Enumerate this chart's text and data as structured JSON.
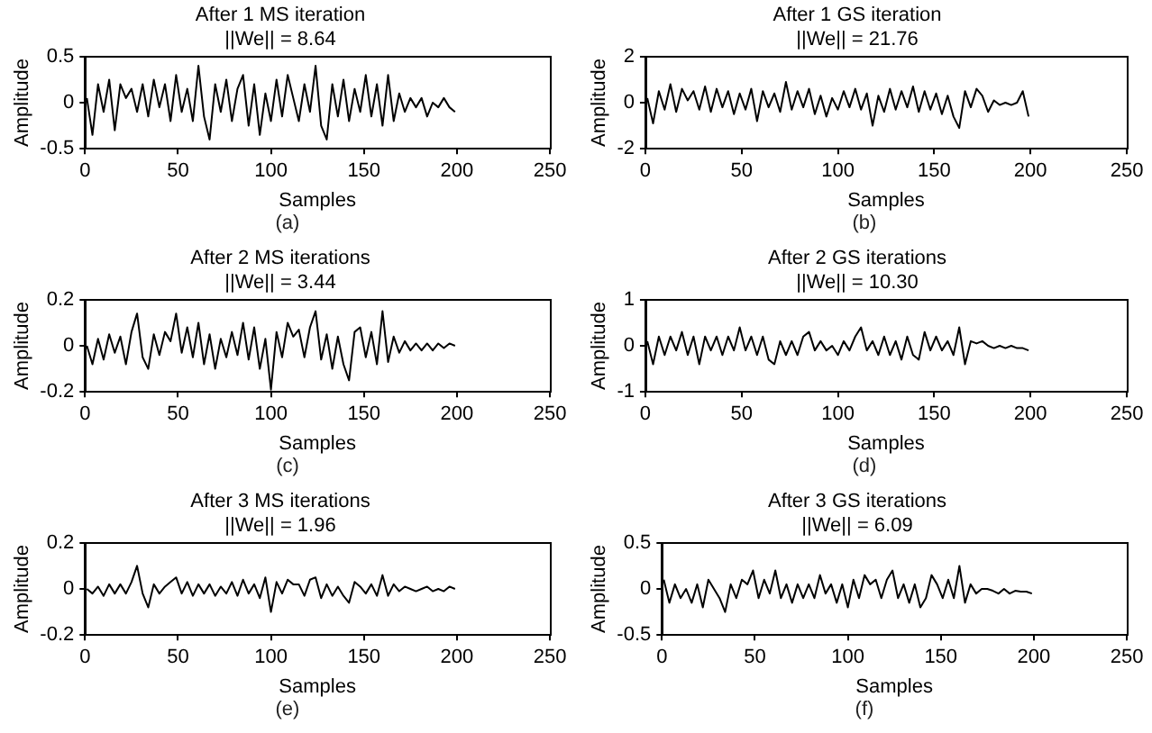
{
  "chart_data": [
    {
      "type": "line",
      "title": "After 1 MS iteration",
      "subtitle": "||We|| = 8.64",
      "xlabel": "Samples",
      "ylabel": "Amplitude",
      "annotations": [
        "(a)"
      ],
      "xlim": [
        0,
        250
      ],
      "xticks": [
        0,
        50,
        100,
        150,
        200,
        250
      ],
      "ylim": [
        -0.5,
        0.5
      ],
      "yticks": [
        -0.5,
        0,
        0.5
      ],
      "grid": false,
      "marker": "none",
      "line_style": "solid",
      "x": [
        1,
        4,
        7,
        10,
        13,
        16,
        19,
        22,
        25,
        28,
        31,
        34,
        37,
        40,
        43,
        46,
        49,
        52,
        55,
        58,
        61,
        64,
        67,
        70,
        73,
        76,
        79,
        82,
        85,
        88,
        91,
        94,
        97,
        100,
        103,
        106,
        109,
        112,
        115,
        118,
        121,
        124,
        127,
        130,
        133,
        136,
        139,
        142,
        145,
        148,
        151,
        154,
        157,
        160,
        163,
        166,
        169,
        172,
        175,
        178,
        181,
        184,
        187,
        190,
        193,
        196,
        199
      ],
      "series": [
        {
          "color": "#000000",
          "values": [
            0.05,
            -0.35,
            0.2,
            -0.1,
            0.25,
            -0.3,
            0.2,
            0.05,
            0.15,
            -0.1,
            0.2,
            -0.15,
            0.25,
            -0.05,
            0.2,
            -0.2,
            0.3,
            -0.1,
            0.15,
            -0.2,
            0.4,
            -0.15,
            -0.4,
            0.2,
            -0.1,
            0.25,
            -0.2,
            0.15,
            0.3,
            -0.25,
            0.2,
            -0.35,
            0.1,
            -0.2,
            0.25,
            -0.15,
            0.3,
            0.05,
            -0.2,
            0.2,
            -0.1,
            0.4,
            -0.25,
            -0.4,
            0.2,
            -0.15,
            0.25,
            -0.2,
            0.15,
            -0.1,
            0.3,
            -0.15,
            0.2,
            -0.25,
            0.3,
            -0.2,
            0.1,
            -0.1,
            0.05,
            -0.05,
            0.05,
            -0.15,
            0.0,
            -0.05,
            0.05,
            -0.05,
            -0.1
          ]
        }
      ]
    },
    {
      "type": "line",
      "title": "After 1 GS iteration",
      "subtitle": "||We|| = 21.76",
      "xlabel": "Samples",
      "ylabel": "Amplitude",
      "annotations": [
        "(b)"
      ],
      "xlim": [
        0,
        250
      ],
      "xticks": [
        0,
        50,
        100,
        150,
        200,
        250
      ],
      "ylim": [
        -2,
        2
      ],
      "yticks": [
        -2,
        0,
        2
      ],
      "grid": false,
      "marker": "none",
      "line_style": "solid",
      "x": [
        1,
        4,
        7,
        10,
        13,
        16,
        19,
        22,
        25,
        28,
        31,
        34,
        37,
        40,
        43,
        46,
        49,
        52,
        55,
        58,
        61,
        64,
        67,
        70,
        73,
        76,
        79,
        82,
        85,
        88,
        91,
        94,
        97,
        100,
        103,
        106,
        109,
        112,
        115,
        118,
        121,
        124,
        127,
        130,
        133,
        136,
        139,
        142,
        145,
        148,
        151,
        154,
        157,
        160,
        163,
        166,
        169,
        172,
        175,
        178,
        181,
        184,
        187,
        190,
        193,
        196,
        199
      ],
      "series": [
        {
          "color": "#000000",
          "values": [
            0.2,
            -0.9,
            0.5,
            -0.3,
            0.8,
            -0.4,
            0.6,
            0.1,
            0.5,
            -0.3,
            0.7,
            -0.4,
            0.6,
            -0.2,
            0.5,
            -0.5,
            0.4,
            -0.3,
            0.6,
            -0.8,
            0.5,
            -0.2,
            0.4,
            -0.4,
            0.9,
            -0.3,
            0.5,
            -0.2,
            0.6,
            -0.5,
            0.3,
            -0.6,
            0.2,
            -0.3,
            0.5,
            -0.2,
            0.6,
            -0.3,
            0.4,
            -1.0,
            0.3,
            -0.4,
            0.6,
            -0.3,
            0.5,
            -0.2,
            0.7,
            -0.4,
            0.5,
            -0.3,
            0.4,
            -0.5,
            0.3,
            -0.6,
            -1.1,
            0.5,
            -0.2,
            0.6,
            0.3,
            -0.4,
            0.1,
            -0.1,
            0.0,
            -0.1,
            0.0,
            0.5,
            -0.6
          ]
        }
      ]
    },
    {
      "type": "line",
      "title": "After 2 MS iterations",
      "subtitle": "||We|| = 3.44",
      "xlabel": "Samples",
      "ylabel": "Amplitude",
      "annotations": [
        "(c)"
      ],
      "xlim": [
        0,
        250
      ],
      "xticks": [
        0,
        50,
        100,
        150,
        200,
        250
      ],
      "ylim": [
        -0.2,
        0.2
      ],
      "yticks": [
        -0.2,
        0,
        0.2
      ],
      "grid": false,
      "marker": "none",
      "line_style": "solid",
      "x": [
        1,
        4,
        7,
        10,
        13,
        16,
        19,
        22,
        25,
        28,
        31,
        34,
        37,
        40,
        43,
        46,
        49,
        52,
        55,
        58,
        61,
        64,
        67,
        70,
        73,
        76,
        79,
        82,
        85,
        88,
        91,
        94,
        97,
        100,
        103,
        106,
        109,
        112,
        115,
        118,
        121,
        124,
        127,
        130,
        133,
        136,
        139,
        142,
        145,
        148,
        151,
        154,
        157,
        160,
        163,
        166,
        169,
        172,
        175,
        178,
        181,
        184,
        187,
        190,
        193,
        196,
        199
      ],
      "series": [
        {
          "color": "#000000",
          "values": [
            0.0,
            -0.08,
            0.03,
            -0.06,
            0.05,
            -0.03,
            0.04,
            -0.08,
            0.06,
            0.14,
            -0.05,
            -0.1,
            0.05,
            -0.04,
            0.06,
            0.02,
            0.14,
            -0.03,
            0.08,
            -0.05,
            0.1,
            -0.08,
            0.05,
            -0.1,
            0.03,
            -0.05,
            0.06,
            -0.04,
            0.1,
            -0.06,
            0.08,
            -0.1,
            0.03,
            -0.19,
            0.06,
            -0.05,
            0.1,
            0.04,
            0.07,
            -0.05,
            0.08,
            0.15,
            -0.06,
            0.05,
            -0.1,
            0.04,
            -0.08,
            -0.15,
            0.06,
            0.08,
            -0.05,
            0.06,
            -0.08,
            0.15,
            -0.07,
            0.04,
            -0.03,
            0.02,
            -0.02,
            0.01,
            -0.02,
            0.01,
            -0.02,
            0.01,
            -0.01,
            0.01,
            0.0
          ]
        }
      ]
    },
    {
      "type": "line",
      "title": "After 2 GS iterations",
      "subtitle": "||We|| = 10.30",
      "xlabel": "Samples",
      "ylabel": "Amplitude",
      "annotations": [
        "(d)"
      ],
      "xlim": [
        0,
        250
      ],
      "xticks": [
        0,
        50,
        100,
        150,
        200,
        250
      ],
      "ylim": [
        -1,
        1
      ],
      "yticks": [
        -1,
        0,
        1
      ],
      "grid": false,
      "marker": "none",
      "line_style": "solid",
      "x": [
        1,
        4,
        7,
        10,
        13,
        16,
        19,
        22,
        25,
        28,
        31,
        34,
        37,
        40,
        43,
        46,
        49,
        52,
        55,
        58,
        61,
        64,
        67,
        70,
        73,
        76,
        79,
        82,
        85,
        88,
        91,
        94,
        97,
        100,
        103,
        106,
        109,
        112,
        115,
        118,
        121,
        124,
        127,
        130,
        133,
        136,
        139,
        142,
        145,
        148,
        151,
        154,
        157,
        160,
        163,
        166,
        169,
        172,
        175,
        178,
        181,
        184,
        187,
        190,
        193,
        196,
        199
      ],
      "series": [
        {
          "color": "#000000",
          "values": [
            0.1,
            -0.4,
            0.2,
            -0.2,
            0.2,
            -0.1,
            0.3,
            -0.2,
            0.2,
            -0.4,
            0.2,
            -0.1,
            0.2,
            -0.2,
            0.2,
            -0.1,
            0.4,
            -0.1,
            0.2,
            -0.2,
            0.2,
            -0.3,
            -0.4,
            0.1,
            -0.2,
            0.1,
            -0.2,
            0.2,
            0.3,
            -0.1,
            0.1,
            -0.1,
            0.0,
            -0.2,
            0.1,
            -0.1,
            0.2,
            0.4,
            -0.1,
            0.1,
            -0.2,
            0.2,
            -0.2,
            0.1,
            -0.3,
            0.2,
            -0.2,
            -0.3,
            0.3,
            -0.1,
            0.2,
            -0.1,
            0.1,
            -0.2,
            0.4,
            -0.4,
            0.1,
            0.05,
            0.1,
            0.0,
            -0.05,
            0.0,
            -0.05,
            0.0,
            -0.05,
            -0.05,
            -0.1
          ]
        }
      ]
    },
    {
      "type": "line",
      "title": "After 3 MS iterations",
      "subtitle": "||We|| = 1.96",
      "xlabel": "Samples",
      "ylabel": "Amplitude",
      "annotations": [
        "(e)"
      ],
      "xlim": [
        0,
        250
      ],
      "xticks": [
        0,
        50,
        100,
        150,
        200,
        250
      ],
      "ylim": [
        -0.2,
        0.2
      ],
      "yticks": [
        -0.2,
        0,
        0.2
      ],
      "grid": false,
      "marker": "none",
      "line_style": "solid",
      "x": [
        1,
        4,
        7,
        10,
        13,
        16,
        19,
        22,
        25,
        28,
        31,
        34,
        37,
        40,
        43,
        46,
        49,
        52,
        55,
        58,
        61,
        64,
        67,
        70,
        73,
        76,
        79,
        82,
        85,
        88,
        91,
        94,
        97,
        100,
        103,
        106,
        109,
        112,
        115,
        118,
        121,
        124,
        127,
        130,
        133,
        136,
        139,
        142,
        145,
        148,
        151,
        154,
        157,
        160,
        163,
        166,
        169,
        172,
        175,
        178,
        181,
        184,
        187,
        190,
        193,
        196,
        199
      ],
      "series": [
        {
          "color": "#000000",
          "values": [
            0.0,
            -0.02,
            0.01,
            -0.03,
            0.02,
            -0.02,
            0.02,
            -0.02,
            0.03,
            0.1,
            -0.02,
            -0.08,
            0.02,
            -0.02,
            0.01,
            0.03,
            0.05,
            -0.02,
            0.03,
            -0.03,
            0.02,
            -0.02,
            0.02,
            -0.03,
            0.01,
            -0.02,
            0.03,
            -0.03,
            0.04,
            -0.02,
            0.02,
            -0.04,
            0.05,
            -0.1,
            0.03,
            -0.02,
            0.04,
            0.02,
            0.02,
            -0.03,
            0.04,
            0.05,
            -0.04,
            0.02,
            -0.03,
            0.01,
            -0.03,
            -0.06,
            0.03,
            0.01,
            -0.02,
            0.02,
            -0.03,
            0.06,
            -0.03,
            0.02,
            -0.01,
            0.01,
            0.0,
            -0.01,
            0.0,
            0.01,
            -0.01,
            0.0,
            -0.01,
            0.01,
            0.0
          ]
        }
      ]
    },
    {
      "type": "line",
      "title": "After 3 GS iterations",
      "subtitle": "||We|| = 6.09",
      "xlabel": "Samples",
      "ylabel": "Amplitude",
      "annotations": [
        "(f)"
      ],
      "xlim": [
        0,
        250
      ],
      "xticks": [
        0,
        50,
        100,
        150,
        200,
        250
      ],
      "ylim": [
        -0.5,
        0.5
      ],
      "yticks": [
        -0.5,
        0,
        0.5
      ],
      "grid": false,
      "marker": "none",
      "line_style": "solid",
      "x": [
        1,
        4,
        7,
        10,
        13,
        16,
        19,
        22,
        25,
        28,
        31,
        34,
        37,
        40,
        43,
        46,
        49,
        52,
        55,
        58,
        61,
        64,
        67,
        70,
        73,
        76,
        79,
        82,
        85,
        88,
        91,
        94,
        97,
        100,
        103,
        106,
        109,
        112,
        115,
        118,
        121,
        124,
        127,
        130,
        133,
        136,
        139,
        142,
        145,
        148,
        151,
        154,
        157,
        160,
        163,
        166,
        169,
        172,
        175,
        178,
        181,
        184,
        187,
        190,
        193,
        196,
        199
      ],
      "series": [
        {
          "color": "#000000",
          "values": [
            0.1,
            -0.15,
            0.05,
            -0.1,
            0.0,
            -0.15,
            0.05,
            -0.2,
            0.1,
            0.0,
            -0.1,
            -0.25,
            0.05,
            -0.1,
            0.1,
            0.05,
            0.2,
            -0.1,
            0.1,
            -0.05,
            0.2,
            -0.1,
            0.05,
            -0.15,
            0.05,
            -0.1,
            0.05,
            -0.1,
            0.15,
            -0.05,
            0.05,
            -0.15,
            0.05,
            -0.2,
            0.1,
            -0.1,
            0.15,
            0.05,
            0.1,
            -0.1,
            0.1,
            0.2,
            -0.1,
            0.05,
            -0.15,
            0.05,
            -0.2,
            -0.1,
            0.15,
            0.05,
            -0.1,
            0.1,
            -0.1,
            0.25,
            -0.15,
            0.05,
            -0.05,
            0.0,
            0.0,
            -0.02,
            -0.05,
            0.0,
            -0.05,
            -0.02,
            -0.03,
            -0.03,
            -0.05
          ]
        }
      ]
    }
  ]
}
